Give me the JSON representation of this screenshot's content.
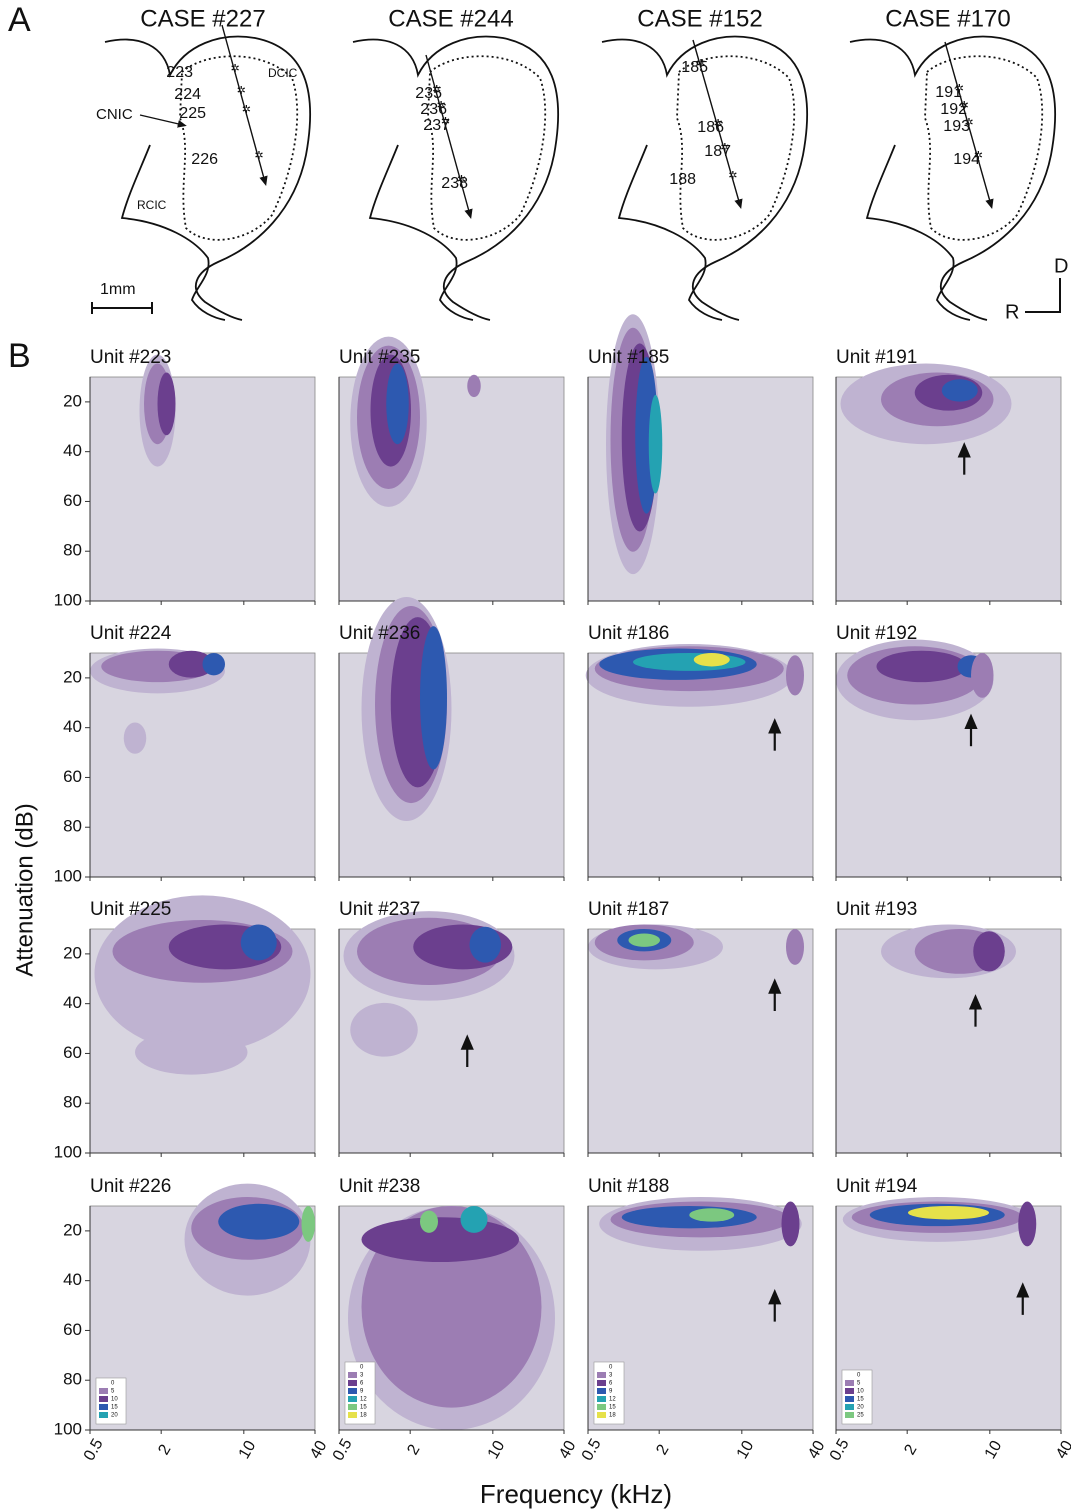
{
  "panel_a": {
    "label": "A",
    "cases": [
      {
        "title": "CASE #227",
        "units": [
          "223",
          "224",
          "225",
          "226"
        ]
      },
      {
        "title": "CASE #244",
        "units": [
          "235",
          "236",
          "237",
          "238"
        ]
      },
      {
        "title": "CASE #152",
        "units": [
          "185",
          "186",
          "187",
          "188"
        ]
      },
      {
        "title": "CASE #170",
        "units": [
          "191",
          "192",
          "193",
          "194"
        ]
      }
    ],
    "regions": {
      "cnic": "CNIC",
      "dcic": "DCIC",
      "rcic": "RCIC"
    },
    "scale_bar": "1mm",
    "orientation": {
      "dorsal": "D",
      "rostral": "R"
    }
  },
  "panel_b": {
    "label": "B",
    "y_label": "Attenuation (dB)",
    "x_label": "Frequency (kHz)",
    "yticks": [
      20,
      40,
      60,
      80,
      100
    ],
    "xticks": [
      "0.5",
      "2",
      "10",
      "40"
    ],
    "rows": [
      [
        "Unit #223",
        "Unit #235",
        "Unit #185",
        "Unit #191"
      ],
      [
        "Unit #224",
        "Unit #236",
        "Unit #186",
        "Unit #192"
      ],
      [
        "Unit #225",
        "Unit #237",
        "Unit #187",
        "Unit #193"
      ],
      [
        "Unit #226",
        "Unit #238",
        "Unit #188",
        "Unit #194"
      ]
    ],
    "legends": [
      [
        "0",
        "5",
        "10",
        "15",
        "20"
      ],
      [
        "0",
        "3",
        "6",
        "9",
        "12",
        "15",
        "18"
      ],
      [
        "0",
        "3",
        "6",
        "9",
        "12",
        "15",
        "18"
      ],
      [
        "0",
        "5",
        "10",
        "15",
        "20",
        "25"
      ]
    ]
  }
}
